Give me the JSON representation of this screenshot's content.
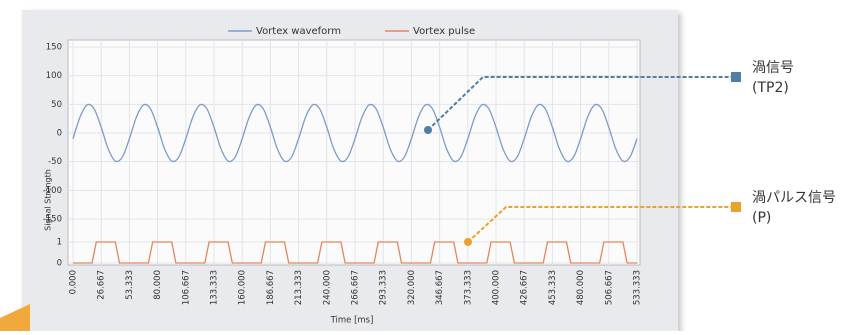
{
  "chart_data": {
    "type": "line",
    "x_label": "Time [ms]",
    "y_label": "Signal Strength",
    "xlim": [
      0,
      533.333
    ],
    "xticks": [
      {
        "value": 0,
        "label": "0.000"
      },
      {
        "value": 26.667,
        "label": "26.667"
      },
      {
        "value": 53.333,
        "label": "53.333"
      },
      {
        "value": 80,
        "label": "80.000"
      },
      {
        "value": 106.667,
        "label": "106.667"
      },
      {
        "value": 133.333,
        "label": "133.333"
      },
      {
        "value": 160,
        "label": "160.000"
      },
      {
        "value": 186.667,
        "label": "186.667"
      },
      {
        "value": 213.333,
        "label": "213.333"
      },
      {
        "value": 240,
        "label": "240.000"
      },
      {
        "value": 266.667,
        "label": "266.667"
      },
      {
        "value": 293.333,
        "label": "293.333"
      },
      {
        "value": 320,
        "label": "320.000"
      },
      {
        "value": 346.667,
        "label": "346.667"
      },
      {
        "value": 373.333,
        "label": "373.333"
      },
      {
        "value": 400,
        "label": "400.000"
      },
      {
        "value": 426.667,
        "label": "426.667"
      },
      {
        "value": 453.333,
        "label": "453.333"
      },
      {
        "value": 480,
        "label": "480.000"
      },
      {
        "value": 506.667,
        "label": "506.667"
      },
      {
        "value": 533.333,
        "label": "533.333"
      }
    ],
    "ylim": [
      -150,
      150
    ],
    "yticks": [
      150,
      100,
      50,
      0,
      -50,
      -100,
      -150
    ],
    "y2lim": [
      0,
      1
    ],
    "y2ticks": [
      1,
      0
    ],
    "grid": true,
    "legend": "top",
    "series": [
      {
        "name": "Vortex waveform",
        "color": "#7b9cc8",
        "x": [
          0,
          6.667,
          13.333,
          20,
          26.667,
          33.333,
          40,
          46.667,
          53.333,
          60,
          66.667,
          73.333,
          80,
          86.667,
          93.333,
          100,
          106.667,
          113.333,
          120,
          126.667,
          133.333,
          140,
          146.667,
          153.333,
          160,
          166.667,
          173.333,
          180,
          186.667,
          193.333,
          200,
          206.667,
          213.333,
          220,
          226.667,
          233.333,
          240,
          246.667,
          253.333,
          260,
          266.667,
          273.333,
          280,
          286.667,
          293.333,
          300,
          306.667,
          313.333,
          320,
          326.667,
          333.333,
          340,
          346.667,
          353.333,
          360,
          366.667,
          373.333,
          380,
          386.667,
          393.333,
          400,
          406.667,
          413.333,
          420,
          426.667,
          433.333,
          440,
          446.667,
          453.333,
          460,
          466.667,
          473.333,
          480,
          486.667,
          493.333,
          500,
          506.667,
          513.333,
          520,
          526.667,
          533.333
        ],
        "values": [
          -10,
          28,
          49,
          42,
          10,
          -28,
          -49,
          -42,
          -10,
          28,
          49,
          42,
          10,
          -28,
          -49,
          -42,
          -10,
          28,
          49,
          42,
          10,
          -28,
          -49,
          -42,
          -10,
          28,
          49,
          42,
          10,
          -28,
          -49,
          -42,
          -10,
          28,
          49,
          42,
          10,
          -28,
          -49,
          -42,
          -10,
          28,
          49,
          42,
          10,
          -28,
          -49,
          -42,
          -10,
          28,
          49,
          42,
          10,
          -28,
          -49,
          -42,
          -10,
          28,
          49,
          42,
          10,
          -28,
          -49,
          -42,
          -10,
          28,
          49,
          42,
          10,
          -28,
          -49,
          -42,
          -10,
          28,
          49,
          42,
          10,
          -28,
          -49,
          -42,
          -10
        ]
      },
      {
        "name": "Vortex pulse",
        "color": "#e8845c",
        "axis": "y2",
        "x": [
          0,
          18,
          22,
          40,
          44,
          71.333,
          75.333,
          93.333,
          97.333,
          124.667,
          128.667,
          146.667,
          150.667,
          178,
          182,
          200,
          204,
          231.333,
          235.333,
          253.333,
          257.333,
          284.667,
          288.667,
          306.667,
          310.667,
          338,
          342,
          360,
          364,
          391.333,
          395.333,
          413.333,
          417.333,
          444.667,
          448.667,
          466.667,
          470.667,
          498,
          502,
          520,
          524,
          533.333
        ],
        "values": [
          0,
          0,
          1,
          1,
          0,
          0,
          1,
          1,
          0,
          0,
          1,
          1,
          0,
          0,
          1,
          1,
          0,
          0,
          1,
          1,
          0,
          0,
          1,
          1,
          0,
          0,
          1,
          1,
          0,
          0,
          1,
          1,
          0,
          0,
          1,
          1,
          0,
          0,
          1,
          1,
          0,
          0
        ]
      }
    ],
    "annotations": [
      [
        "渦信号",
        "(TP2)"
      ],
      [
        "渦パルス信号",
        "(P)"
      ]
    ]
  }
}
